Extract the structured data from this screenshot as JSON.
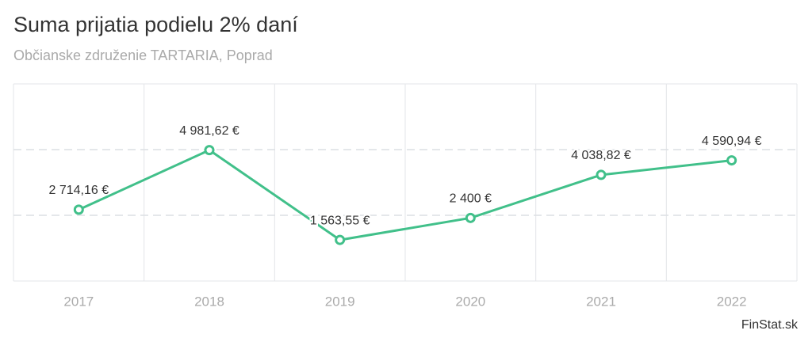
{
  "chart_data": {
    "type": "line",
    "title": "Suma prijatia podielu 2% daní",
    "subtitle": "Občianske združenie TARTARIA, Poprad",
    "source": "FinStat.sk",
    "categories": [
      "2017",
      "2018",
      "2019",
      "2020",
      "2021",
      "2022"
    ],
    "series": [
      {
        "color": "#41c08a",
        "values": [
          2714.16,
          4981.62,
          1563.55,
          2400,
          4038.82,
          4590.94
        ],
        "value_labels": [
          "2 714,16 €",
          "4 981,62 €",
          "1 563,55 €",
          "2 400 €",
          "4 038,82 €",
          "4 590,94 €"
        ]
      }
    ],
    "ylim": [
      0,
      7500
    ],
    "yticks": [
      0,
      2500,
      5000,
      7500
    ],
    "grid": true
  }
}
